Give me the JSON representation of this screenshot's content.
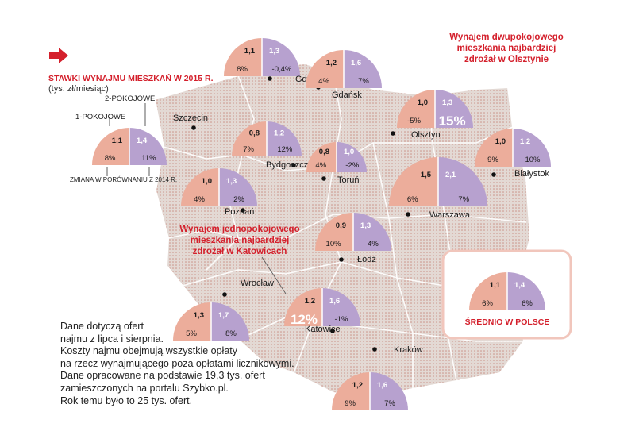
{
  "legend": {
    "title": "STAWKI WYNAJMU MIESZKAŃ W 2015 R.",
    "unit": "(tys. zł/miesiąc)",
    "label_2room": "2-POKOJOWE",
    "label_1room": "1-POKOJOWE",
    "change_label": "ZMIANA W PORÓWNANIU Z 2014 R."
  },
  "callouts": {
    "olsztyn": [
      "Wynajem dwupokojowego",
      "mieszkania najbardziej",
      "zdrożał w Olsztynie"
    ],
    "katowice": [
      "Wynajem jednopokojowego",
      "mieszkania najbardziej",
      "zdrożał w Katowicach"
    ]
  },
  "note_lines": [
    "Dane dotyczą ofert",
    "najmu z lipca i sierpnia.",
    "Koszty najmu obejmują wszystkie opłaty",
    "na rzecz wynajmującego poza opłatami licznikowymi.",
    "Dane opracowane na podstawie 19,3 tys. ofert",
    "zamieszczonych na portalu Szybko.pl.",
    "Rok temu było to 25 tys. ofert."
  ],
  "average_label": "ŚREDNIO W POLSCE",
  "colors": {
    "one_room": "#ecad9b",
    "two_room": "#b7a1cf",
    "accent": "#d4202c",
    "map": "#e0d7d2",
    "map_dot": "#c98d82"
  },
  "chart_data": {
    "type": "semicircle-pairs",
    "title": "STAWKI WYNAJMU MIESZKAŃ W 2015 R.",
    "unit": "tys. zł/miesiąc",
    "series": [
      "1-POKOJOWE",
      "2-POKOJOWE"
    ],
    "cities": [
      {
        "id": "legend",
        "name": "",
        "one_room": "1,1",
        "two_room": "1,4",
        "one_change": "8%",
        "two_change": "11%"
      },
      {
        "id": "gdynia",
        "name": "Gdynia",
        "one_room": "1,1",
        "two_room": "1,3",
        "one_change": "8%",
        "two_change": "-0,4%"
      },
      {
        "id": "gdansk",
        "name": "Gdańsk",
        "one_room": "1,2",
        "two_room": "1,6",
        "one_change": "4%",
        "two_change": "7%"
      },
      {
        "id": "olsztyn",
        "name": "Olsztyn",
        "one_room": "1,0",
        "two_room": "1,3",
        "one_change": "-5%",
        "two_change": "15%"
      },
      {
        "id": "szczecin",
        "name": "Szczecin",
        "one_room": "",
        "two_room": "",
        "one_change": "",
        "two_change": ""
      },
      {
        "id": "bydgoszcz",
        "name": "Bydgoszcz",
        "one_room": "0,8",
        "two_room": "1,2",
        "one_change": "7%",
        "two_change": "12%"
      },
      {
        "id": "torun",
        "name": "Toruń",
        "one_room": "0,8",
        "two_room": "1,0",
        "one_change": "4%",
        "two_change": "-2%"
      },
      {
        "id": "bialystok",
        "name": "Białystok",
        "one_room": "1,0",
        "two_room": "1,2",
        "one_change": "9%",
        "two_change": "10%"
      },
      {
        "id": "poznan",
        "name": "Poznań",
        "one_room": "1,0",
        "two_room": "1,3",
        "one_change": "4%",
        "two_change": "2%"
      },
      {
        "id": "warszawa",
        "name": "Warszawa",
        "one_room": "1,5",
        "two_room": "2,1",
        "one_change": "6%",
        "two_change": "7%"
      },
      {
        "id": "lodz",
        "name": "Łódź",
        "one_room": "0,9",
        "two_room": "1,3",
        "one_change": "10%",
        "two_change": "4%"
      },
      {
        "id": "wroclaw",
        "name": "Wrocław",
        "one_room": "1,3",
        "two_room": "1,7",
        "one_change": "5%",
        "two_change": "8%"
      },
      {
        "id": "katowice",
        "name": "Katowice",
        "one_room": "1,2",
        "two_room": "1,6",
        "one_change": "12%",
        "two_change": "-1%"
      },
      {
        "id": "krakow",
        "name": "Kraków",
        "one_room": "1,2",
        "two_room": "1,6",
        "one_change": "9%",
        "two_change": "7%"
      },
      {
        "id": "average",
        "name": "ŚREDNIO W POLSCE",
        "one_room": "1,1",
        "two_room": "1,4",
        "one_change": "6%",
        "two_change": "6%"
      }
    ]
  }
}
